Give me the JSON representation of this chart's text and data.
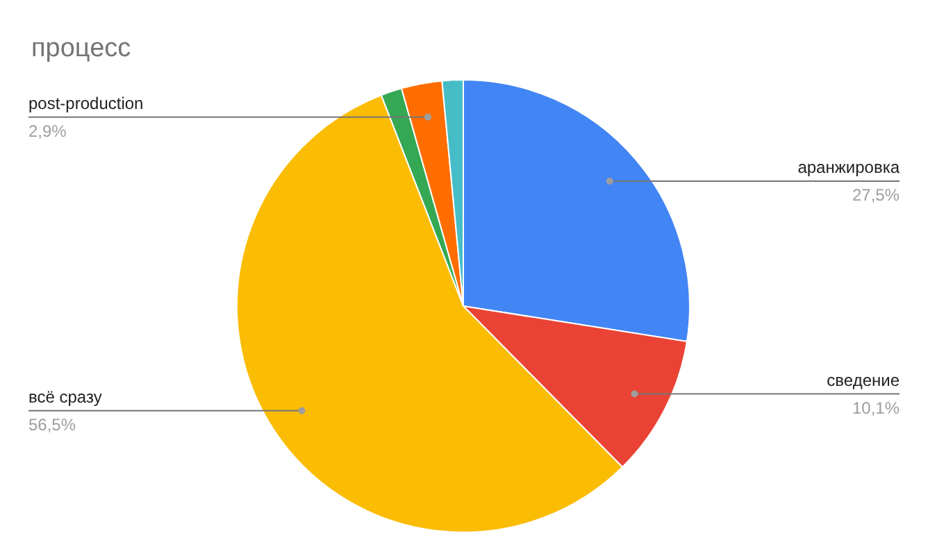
{
  "chart_data": {
    "type": "pie",
    "title": "процесс",
    "categories": [
      "аранжировка",
      "сведение",
      "всё сразу",
      null,
      "post-production",
      null
    ],
    "values": [
      27.5,
      10.1,
      56.5,
      1.5,
      2.9,
      1.5
    ],
    "colors": [
      "#4285f4",
      "#ea4335",
      "#fbbc04",
      "#34a853",
      "#ff6d01",
      "#46bdc6"
    ],
    "value_labels": [
      "27,5%",
      "10,1%",
      "56,5%",
      null,
      "2,9%",
      null
    ]
  }
}
